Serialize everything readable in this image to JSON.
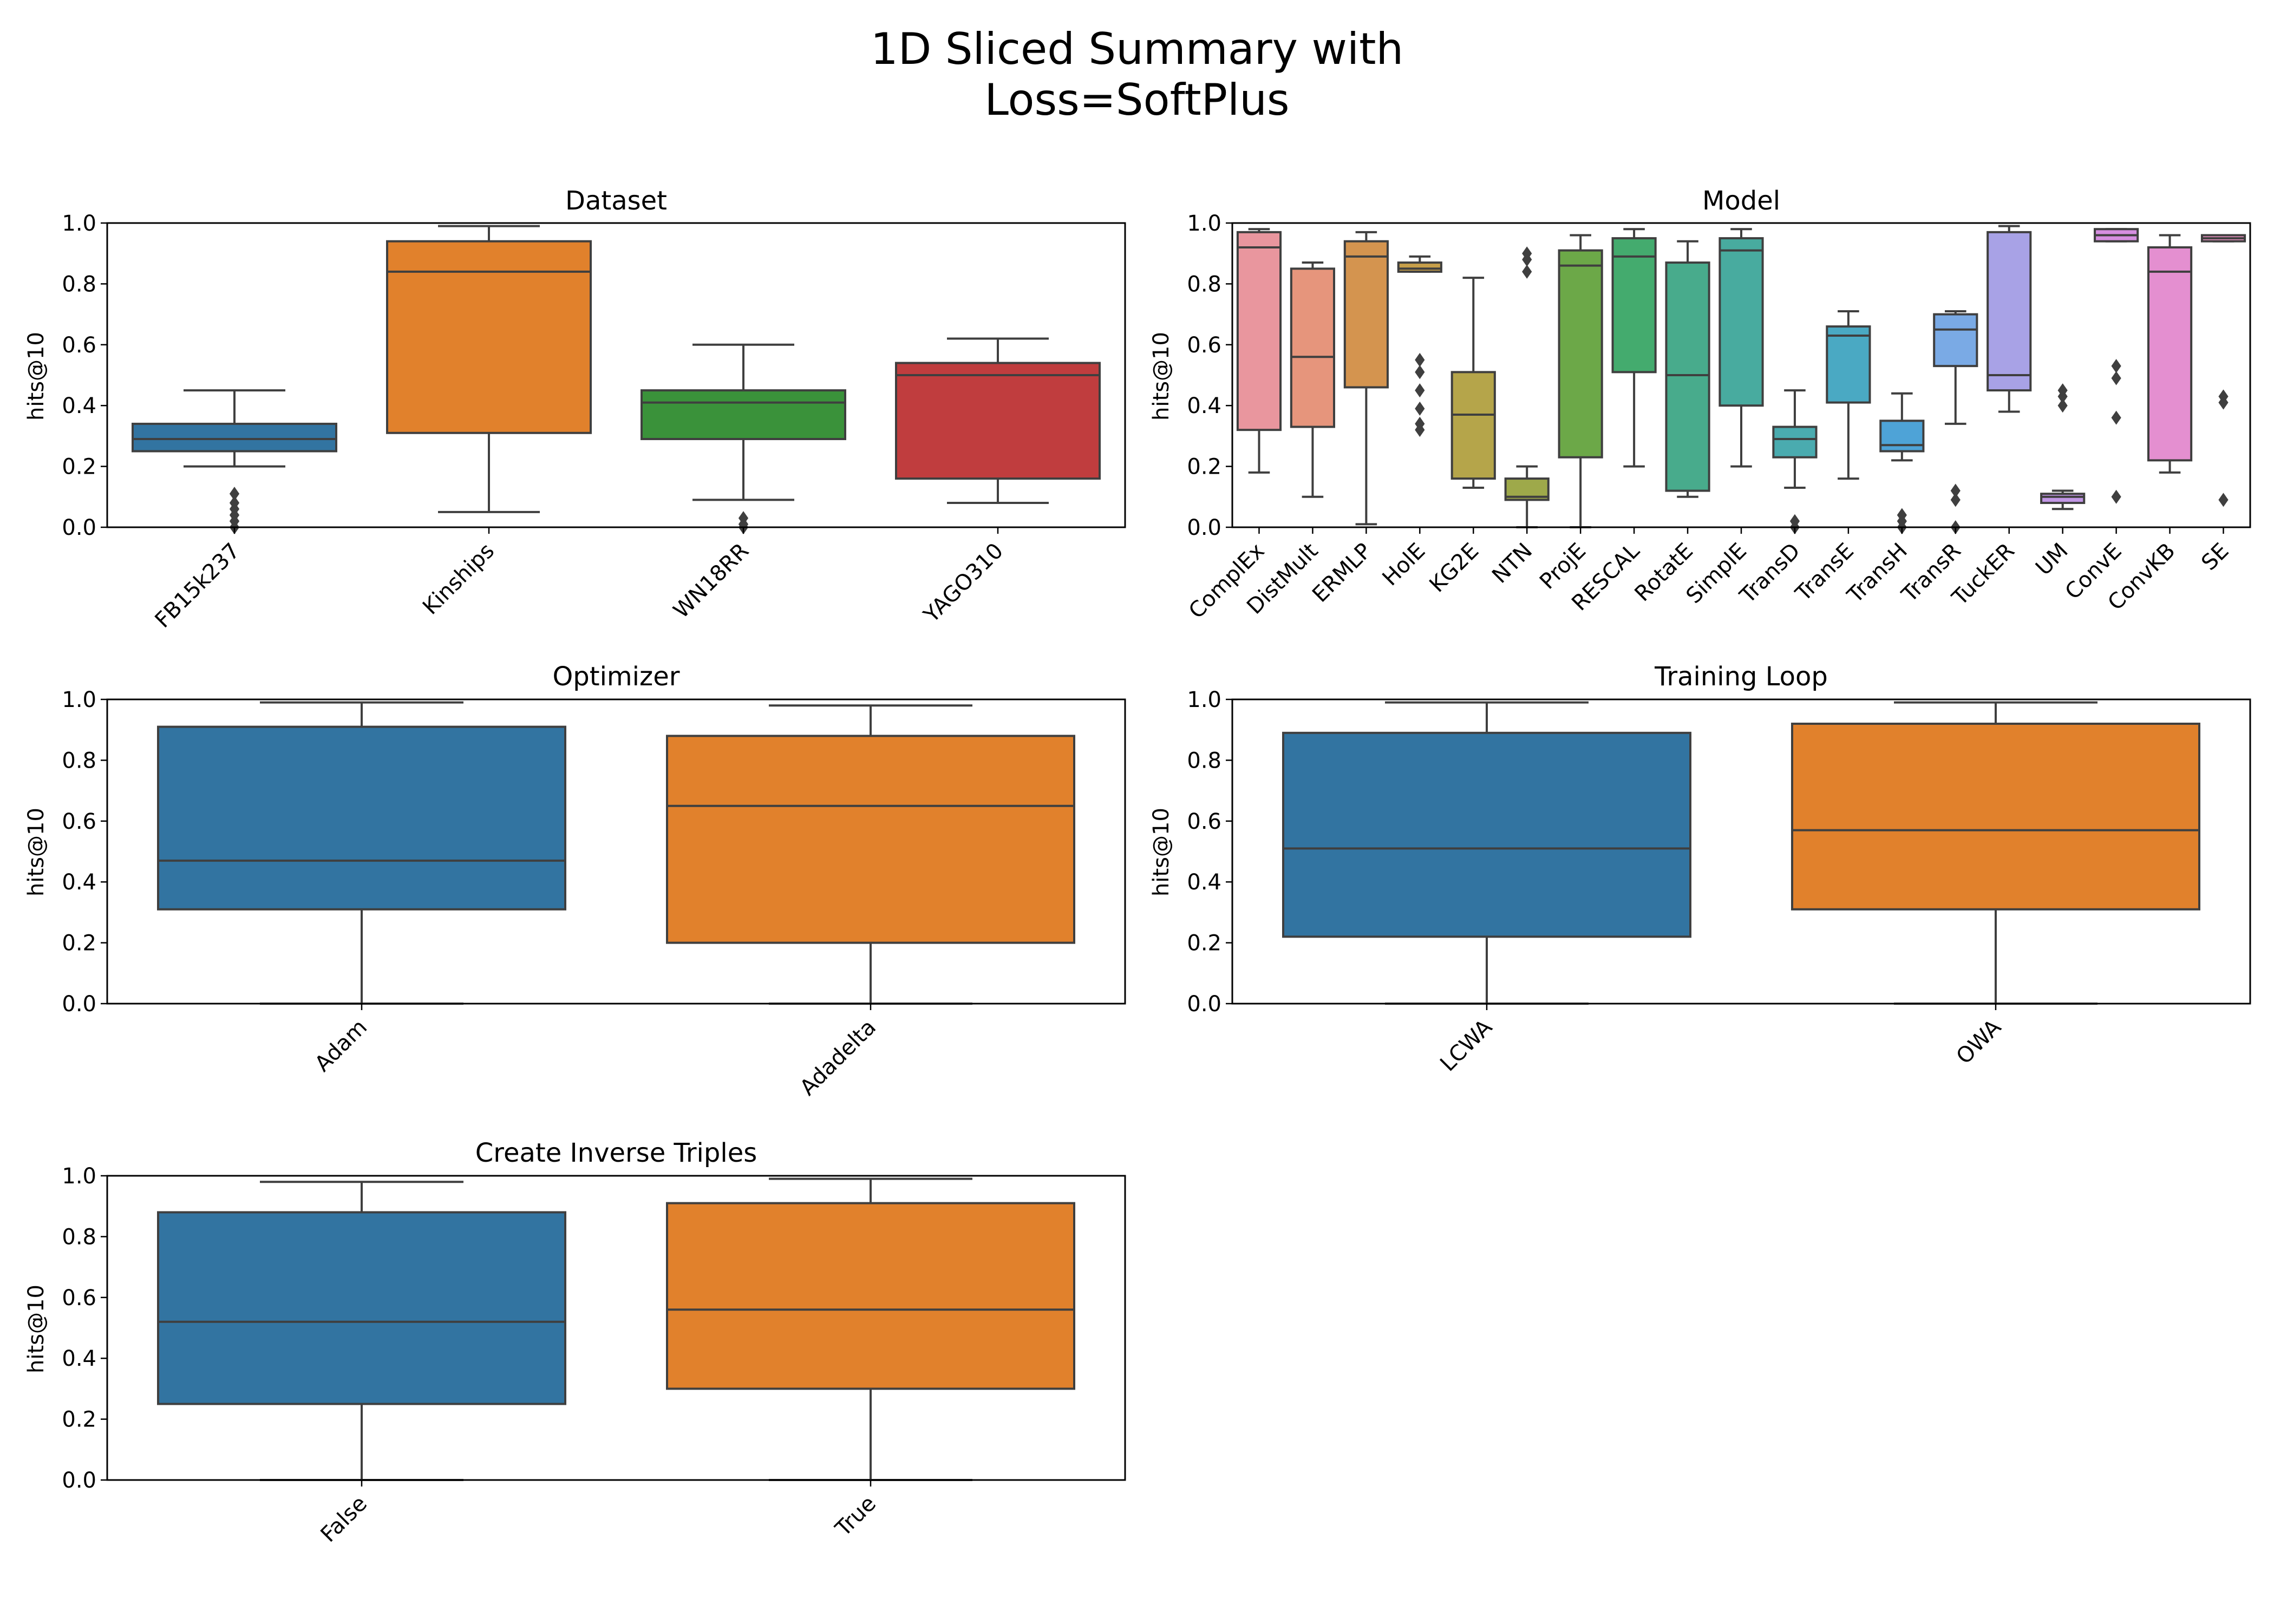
{
  "figure": {
    "title_line1": "1D Sliced Summary with",
    "title_line2": "Loss=SoftPlus"
  },
  "chart_data": [
    {
      "type": "box",
      "title": "Dataset",
      "ylabel": "hits@10",
      "ylim": [
        0,
        1
      ],
      "yticks": [
        "0.0",
        "0.2",
        "0.4",
        "0.6",
        "0.8",
        "1.0"
      ],
      "categories": [
        {
          "label": "FB15k237",
          "color": "#3274a1",
          "whisker_low": 0.2,
          "q1": 0.25,
          "median": 0.29,
          "q3": 0.34,
          "whisker_high": 0.45,
          "outliers": [
            0.0,
            0.02,
            0.04,
            0.06,
            0.08,
            0.11
          ]
        },
        {
          "label": "Kinships",
          "color": "#e1812c",
          "whisker_low": 0.05,
          "q1": 0.31,
          "median": 0.84,
          "q3": 0.94,
          "whisker_high": 0.99,
          "outliers": []
        },
        {
          "label": "WN18RR",
          "color": "#3a923a",
          "whisker_low": 0.09,
          "q1": 0.29,
          "median": 0.41,
          "q3": 0.45,
          "whisker_high": 0.6,
          "outliers": [
            0.0,
            0.01,
            0.03
          ]
        },
        {
          "label": "YAGO310",
          "color": "#c03d3e",
          "whisker_low": 0.08,
          "q1": 0.16,
          "median": 0.5,
          "q3": 0.54,
          "whisker_high": 0.62,
          "outliers": []
        }
      ]
    },
    {
      "type": "box",
      "title": "Model",
      "ylabel": "hits@10",
      "ylim": [
        0,
        1
      ],
      "yticks": [
        "0.0",
        "0.2",
        "0.4",
        "0.6",
        "0.8",
        "1.0"
      ],
      "categories": [
        {
          "label": "ComplEx",
          "color": "#e9969e",
          "whisker_low": 0.18,
          "q1": 0.32,
          "median": 0.92,
          "q3": 0.97,
          "whisker_high": 0.98,
          "outliers": []
        },
        {
          "label": "DistMult",
          "color": "#e6957c",
          "whisker_low": 0.1,
          "q1": 0.33,
          "median": 0.56,
          "q3": 0.85,
          "whisker_high": 0.87,
          "outliers": []
        },
        {
          "label": "ERMLP",
          "color": "#d4944f",
          "whisker_low": 0.01,
          "q1": 0.46,
          "median": 0.89,
          "q3": 0.94,
          "whisker_high": 0.97,
          "outliers": []
        },
        {
          "label": "HolE",
          "color": "#c79f4a",
          "whisker_low": 0.84,
          "q1": 0.84,
          "median": 0.85,
          "q3": 0.87,
          "whisker_high": 0.89,
          "outliers": [
            0.32,
            0.34,
            0.39,
            0.45,
            0.51,
            0.55
          ]
        },
        {
          "label": "KG2E",
          "color": "#b5a54a",
          "whisker_low": 0.13,
          "q1": 0.16,
          "median": 0.37,
          "q3": 0.51,
          "whisker_high": 0.82,
          "outliers": []
        },
        {
          "label": "NTN",
          "color": "#9ea94a",
          "whisker_low": 0.0,
          "q1": 0.09,
          "median": 0.1,
          "q3": 0.16,
          "whisker_high": 0.2,
          "outliers": [
            0.84,
            0.88,
            0.9
          ]
        },
        {
          "label": "ProjE",
          "color": "#6ca848",
          "whisker_low": 0.0,
          "q1": 0.23,
          "median": 0.86,
          "q3": 0.91,
          "whisker_high": 0.96,
          "outliers": []
        },
        {
          "label": "RESCAL",
          "color": "#44ab6e",
          "whisker_low": 0.2,
          "q1": 0.51,
          "median": 0.89,
          "q3": 0.95,
          "whisker_high": 0.98,
          "outliers": []
        },
        {
          "label": "RotatE",
          "color": "#48ab8c",
          "whisker_low": 0.1,
          "q1": 0.12,
          "median": 0.5,
          "q3": 0.87,
          "whisker_high": 0.94,
          "outliers": []
        },
        {
          "label": "SimplE",
          "color": "#48ab9f",
          "whisker_low": 0.2,
          "q1": 0.4,
          "median": 0.91,
          "q3": 0.95,
          "whisker_high": 0.98,
          "outliers": []
        },
        {
          "label": "TransD",
          "color": "#4aabaf",
          "whisker_low": 0.13,
          "q1": 0.23,
          "median": 0.29,
          "q3": 0.33,
          "whisker_high": 0.45,
          "outliers": [
            0.0,
            0.02
          ]
        },
        {
          "label": "TransE",
          "color": "#4aa9c3",
          "whisker_low": 0.16,
          "q1": 0.41,
          "median": 0.63,
          "q3": 0.66,
          "whisker_high": 0.71,
          "outliers": []
        },
        {
          "label": "TransH",
          "color": "#4ea3d7",
          "whisker_low": 0.22,
          "q1": 0.25,
          "median": 0.27,
          "q3": 0.35,
          "whisker_high": 0.44,
          "outliers": [
            0.0,
            0.02,
            0.04
          ]
        },
        {
          "label": "TransR",
          "color": "#7aaae5",
          "whisker_low": 0.34,
          "q1": 0.53,
          "median": 0.65,
          "q3": 0.7,
          "whisker_high": 0.71,
          "outliers": [
            0.0,
            0.09,
            0.12
          ]
        },
        {
          "label": "TuckER",
          "color": "#a8a2e6",
          "whisker_low": 0.38,
          "q1": 0.45,
          "median": 0.5,
          "q3": 0.97,
          "whisker_high": 0.99,
          "outliers": []
        },
        {
          "label": "UM",
          "color": "#c297e5",
          "whisker_low": 0.06,
          "q1": 0.08,
          "median": 0.1,
          "q3": 0.11,
          "whisker_high": 0.12,
          "outliers": [
            0.4,
            0.43,
            0.45
          ]
        },
        {
          "label": "ConvE",
          "color": "#d58ee0",
          "whisker_low": 0.94,
          "q1": 0.94,
          "median": 0.96,
          "q3": 0.98,
          "whisker_high": 0.98,
          "outliers": [
            0.1,
            0.36,
            0.49,
            0.53
          ]
        },
        {
          "label": "ConvKB",
          "color": "#e48fd0",
          "whisker_low": 0.18,
          "q1": 0.22,
          "median": 0.84,
          "q3": 0.92,
          "whisker_high": 0.96,
          "outliers": []
        },
        {
          "label": "SE",
          "color": "#e890bf",
          "whisker_low": 0.94,
          "q1": 0.94,
          "median": 0.95,
          "q3": 0.96,
          "whisker_high": 0.96,
          "outliers": [
            0.09,
            0.41,
            0.43
          ]
        }
      ]
    },
    {
      "type": "box",
      "title": "Optimizer",
      "ylabel": "hits@10",
      "ylim": [
        0,
        1
      ],
      "yticks": [
        "0.0",
        "0.2",
        "0.4",
        "0.6",
        "0.8",
        "1.0"
      ],
      "categories": [
        {
          "label": "Adam",
          "color": "#3274a1",
          "whisker_low": 0.0,
          "q1": 0.31,
          "median": 0.47,
          "q3": 0.91,
          "whisker_high": 0.99,
          "outliers": []
        },
        {
          "label": "Adadelta",
          "color": "#e1812c",
          "whisker_low": 0.0,
          "q1": 0.2,
          "median": 0.65,
          "q3": 0.88,
          "whisker_high": 0.98,
          "outliers": []
        }
      ]
    },
    {
      "type": "box",
      "title": "Training Loop",
      "ylabel": "hits@10",
      "ylim": [
        0,
        1
      ],
      "yticks": [
        "0.0",
        "0.2",
        "0.4",
        "0.6",
        "0.8",
        "1.0"
      ],
      "categories": [
        {
          "label": "LCWA",
          "color": "#3274a1",
          "whisker_low": 0.0,
          "q1": 0.22,
          "median": 0.51,
          "q3": 0.89,
          "whisker_high": 0.99,
          "outliers": []
        },
        {
          "label": "OWA",
          "color": "#e1812c",
          "whisker_low": 0.0,
          "q1": 0.31,
          "median": 0.57,
          "q3": 0.92,
          "whisker_high": 0.99,
          "outliers": []
        }
      ]
    },
    {
      "type": "box",
      "title": "Create Inverse Triples",
      "ylabel": "hits@10",
      "ylim": [
        0,
        1
      ],
      "yticks": [
        "0.0",
        "0.2",
        "0.4",
        "0.6",
        "0.8",
        "1.0"
      ],
      "categories": [
        {
          "label": "False",
          "color": "#3274a1",
          "whisker_low": 0.0,
          "q1": 0.25,
          "median": 0.52,
          "q3": 0.88,
          "whisker_high": 0.98,
          "outliers": []
        },
        {
          "label": "True",
          "color": "#e1812c",
          "whisker_low": 0.0,
          "q1": 0.3,
          "median": 0.56,
          "q3": 0.91,
          "whisker_high": 0.99,
          "outliers": []
        }
      ]
    }
  ]
}
